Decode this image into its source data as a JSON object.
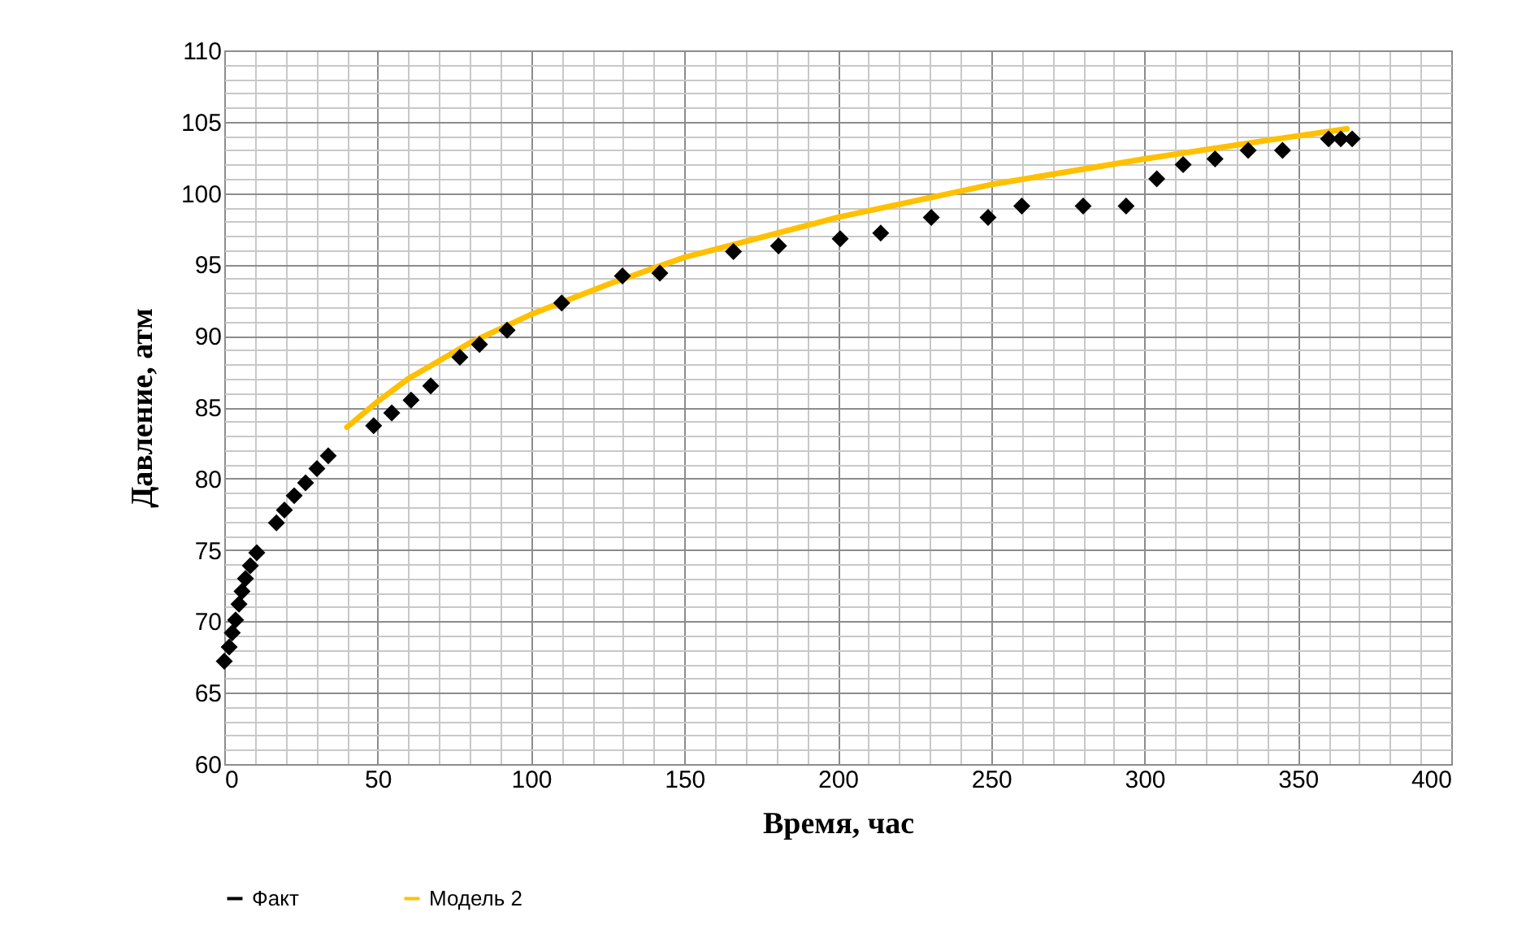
{
  "chart_data": {
    "type": "scatter",
    "xlabel": "Время, час",
    "ylabel": "Давление, атм",
    "xlim": [
      0,
      400
    ],
    "xticks": [
      0,
      50,
      100,
      150,
      200,
      250,
      300,
      350,
      400
    ],
    "ylim": [
      60,
      110
    ],
    "yticks": [
      60,
      65,
      70,
      75,
      80,
      85,
      90,
      95,
      100,
      105,
      110
    ],
    "grid": true,
    "legend": "bottom",
    "series": [
      {
        "name": "Факт",
        "type": "scatter",
        "marker": "diamond",
        "color": "#000000",
        "x": [
          0,
          1.6,
          2.6,
          3.7,
          4.8,
          5.8,
          6.9,
          8.5,
          10.6,
          17,
          19.6,
          22.8,
          26.5,
          30.2,
          33.9,
          48.7,
          54.6,
          60.9,
          67.3,
          76.8,
          83.2,
          92.2,
          110,
          129.8,
          142,
          166,
          180.7,
          200.8,
          214,
          230.5,
          249,
          260,
          280,
          294,
          304,
          312.6,
          323,
          333.8,
          345,
          360,
          364,
          367.7
        ],
        "values": [
          67.2,
          68.2,
          69.2,
          70.1,
          71.2,
          72.1,
          73,
          73.9,
          74.8,
          76.9,
          77.8,
          78.8,
          79.7,
          80.7,
          81.6,
          83.7,
          84.6,
          85.5,
          86.5,
          88.5,
          89.4,
          90.4,
          92.3,
          94.2,
          94.4,
          95.9,
          96.3,
          96.8,
          97.2,
          98.3,
          98.3,
          99.1,
          99.1,
          99.1,
          101,
          102,
          102.4,
          103,
          103,
          103.8,
          103.8,
          103.8
        ]
      },
      {
        "name": "Модель 2",
        "type": "line",
        "marker": "none",
        "color": "#ffc000",
        "x": [
          40,
          50,
          60,
          80,
          100,
          125,
          150,
          200,
          250,
          300,
          340,
          366
        ],
        "values": [
          83.6,
          85.4,
          87.0,
          89.5,
          91.5,
          93.6,
          95.5,
          98.3,
          100.6,
          102.4,
          103.7,
          104.5
        ]
      }
    ]
  }
}
